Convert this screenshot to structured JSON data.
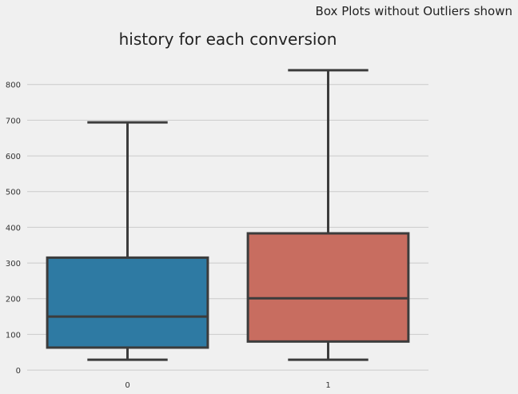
{
  "figure": {
    "suptitle": "Box Plots without Outliers shown"
  },
  "chart_data": {
    "type": "boxplot",
    "title": "history for each conversion",
    "xlabel": "",
    "ylabel": "",
    "categories": [
      "0",
      "1"
    ],
    "ylim": [
      -20,
      880
    ],
    "yticks": [
      0,
      100,
      200,
      300,
      400,
      500,
      600,
      700,
      800
    ],
    "grid": "horizontal",
    "legend": "none",
    "boxes": [
      {
        "category": "0",
        "whisker_low": 29,
        "q1": 63,
        "median": 150,
        "q3": 315,
        "whisker_high": 694,
        "color": "#2e7aa3"
      },
      {
        "category": "1",
        "whisker_low": 29,
        "q1": 80,
        "median": 201,
        "q3": 383,
        "whisker_high": 840,
        "color": "#c86d60"
      }
    ],
    "line_color": "#3c3c3c"
  }
}
